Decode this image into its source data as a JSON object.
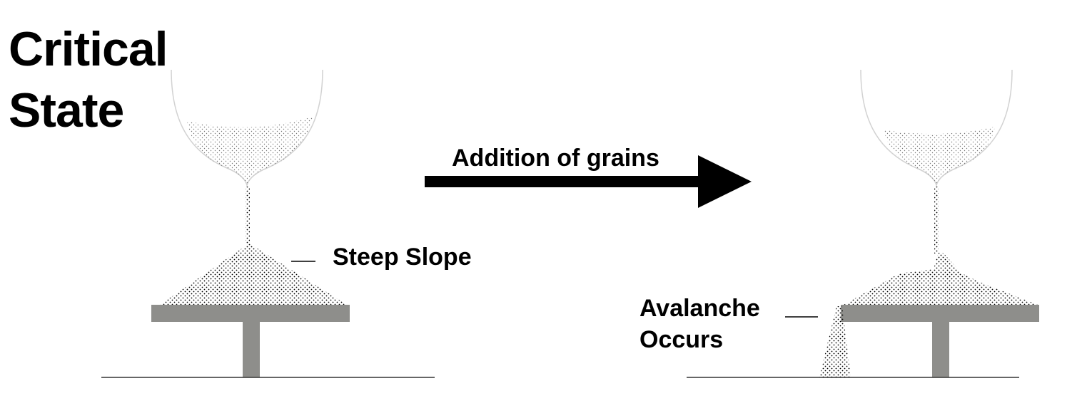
{
  "title": {
    "line1": "Critical",
    "line2": "State"
  },
  "arrow": {
    "label": "Addition of grains"
  },
  "left_scene": {
    "annotation": "Steep Slope"
  },
  "right_scene": {
    "annotation_line1": "Avalanche",
    "annotation_line2": "Occurs"
  },
  "colors": {
    "table": "#8e8e8b",
    "sand_dots": "#000000",
    "funnel_outline": "#cfcfcf",
    "ground": "#333333",
    "text": "#000000"
  }
}
